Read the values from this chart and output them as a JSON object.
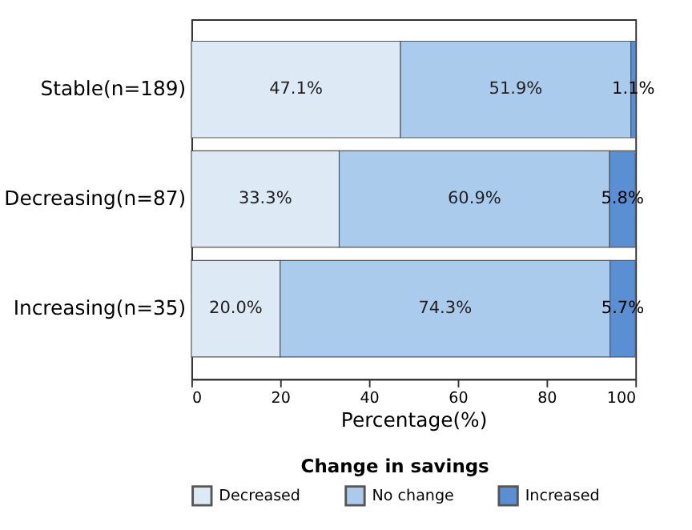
{
  "chart_data": {
    "type": "bar",
    "orientation": "horizontal",
    "stacked": true,
    "categories": [
      "Stable(n=189)",
      "Decreasing(n=87)",
      "Increasing(n=35)"
    ],
    "series": [
      {
        "name": "Decreased",
        "color": "#dde9f5",
        "values": [
          47.1,
          33.3,
          20.0
        ],
        "value_labels": [
          "47.1%",
          "33.3%",
          "20.0%"
        ]
      },
      {
        "name": "No change",
        "color": "#abcbed",
        "values": [
          51.9,
          60.9,
          74.3
        ],
        "value_labels": [
          "51.9%",
          "60.9%",
          "74.3%"
        ]
      },
      {
        "name": "Increased",
        "color": "#5b8fd3",
        "values": [
          1.1,
          5.8,
          5.7
        ],
        "value_labels": [
          "1.1%",
          "5.8%",
          "5.7%"
        ]
      }
    ],
    "xlabel": "Percentage(%)",
    "legend_title": "Change in savings",
    "legend": "bottom",
    "xlim": [
      0,
      100
    ],
    "xticks": [
      0,
      20,
      40,
      60,
      80,
      100
    ],
    "grid": false
  }
}
